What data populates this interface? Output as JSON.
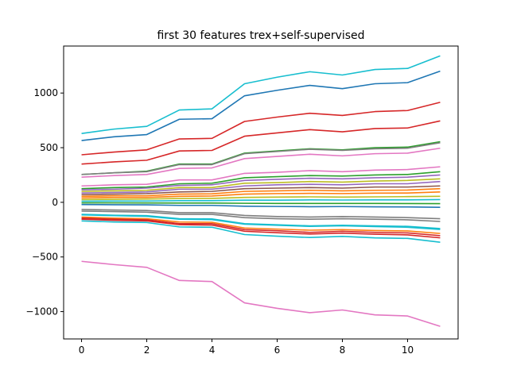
{
  "chart_data": {
    "type": "line",
    "title": "first 30 features trex+self-supervised",
    "xlabel": "",
    "ylabel": "",
    "xlim": [
      -0.55,
      11.55
    ],
    "ylim": [
      -1250,
      1430
    ],
    "xticks": [
      0,
      2,
      4,
      6,
      8,
      10
    ],
    "xtick_labels": [
      "0",
      "2",
      "4",
      "6",
      "8",
      "10"
    ],
    "yticks": [
      -1000,
      -500,
      0,
      500,
      1000
    ],
    "ytick_labels": [
      "−1000",
      "−500",
      "0",
      "500",
      "1000"
    ],
    "grid": false,
    "legend": "none",
    "x": [
      0,
      1,
      2,
      3,
      4,
      5,
      6,
      7,
      8,
      9,
      10,
      11
    ],
    "series": [
      {
        "color": "#17becf",
        "values": [
          630,
          670,
          695,
          845,
          855,
          1085,
          1145,
          1195,
          1165,
          1215,
          1225,
          1340
        ]
      },
      {
        "color": "#1f77b4",
        "values": [
          565,
          600,
          620,
          760,
          765,
          975,
          1025,
          1070,
          1040,
          1085,
          1095,
          1200
        ]
      },
      {
        "color": "#d62728",
        "values": [
          435,
          460,
          480,
          580,
          585,
          740,
          780,
          815,
          795,
          830,
          840,
          915
        ]
      },
      {
        "color": "#d62728",
        "values": [
          350,
          370,
          385,
          470,
          475,
          605,
          635,
          665,
          645,
          675,
          680,
          745
        ]
      },
      {
        "color": "#2ca02c",
        "values": [
          255,
          270,
          285,
          350,
          350,
          450,
          470,
          490,
          480,
          500,
          505,
          555
        ]
      },
      {
        "color": "#7f7f7f",
        "values": [
          255,
          270,
          280,
          345,
          345,
          445,
          465,
          485,
          475,
          490,
          495,
          545
        ]
      },
      {
        "color": "#e377c2",
        "values": [
          230,
          245,
          255,
          310,
          315,
          400,
          420,
          440,
          425,
          445,
          450,
          495
        ]
      },
      {
        "color": "#e377c2",
        "values": [
          150,
          160,
          165,
          205,
          205,
          265,
          275,
          290,
          280,
          295,
          300,
          325
        ]
      },
      {
        "color": "#2ca02c",
        "values": [
          125,
          135,
          140,
          170,
          175,
          225,
          235,
          245,
          240,
          250,
          255,
          280
        ]
      },
      {
        "color": "#9467bd",
        "values": [
          115,
          120,
          130,
          155,
          160,
          200,
          210,
          220,
          215,
          225,
          230,
          250
        ]
      },
      {
        "color": "#bcbd22",
        "values": [
          100,
          105,
          110,
          135,
          135,
          175,
          180,
          190,
          185,
          195,
          200,
          215
        ]
      },
      {
        "color": "#9467bd",
        "values": [
          85,
          90,
          95,
          120,
          120,
          150,
          160,
          165,
          160,
          170,
          170,
          190
        ]
      },
      {
        "color": "#8c564b",
        "values": [
          70,
          75,
          80,
          95,
          100,
          125,
          130,
          135,
          130,
          140,
          140,
          150
        ]
      },
      {
        "color": "#ff7f0e",
        "values": [
          55,
          60,
          60,
          75,
          78,
          100,
          105,
          110,
          105,
          110,
          112,
          125
        ]
      },
      {
        "color": "#ff7f0e",
        "values": [
          40,
          45,
          45,
          55,
          58,
          75,
          80,
          82,
          80,
          84,
          85,
          95
        ]
      },
      {
        "color": "#bcbd22",
        "values": [
          25,
          28,
          30,
          35,
          36,
          45,
          48,
          50,
          48,
          50,
          52,
          55
        ]
      },
      {
        "color": "#17becf",
        "values": [
          10,
          12,
          12,
          15,
          15,
          20,
          20,
          22,
          21,
          22,
          22,
          25
        ]
      },
      {
        "color": "#2ca02c",
        "values": [
          -5,
          -5,
          -6,
          -7,
          -7,
          -9,
          -10,
          -10,
          -10,
          -10,
          -11,
          -12
        ]
      },
      {
        "color": "#1f77b4",
        "values": [
          -20,
          -22,
          -23,
          -28,
          -28,
          -36,
          -38,
          -40,
          -39,
          -41,
          -42,
          -46
        ]
      },
      {
        "color": "#7f7f7f",
        "values": [
          -65,
          -70,
          -75,
          -95,
          -95,
          -120,
          -130,
          -135,
          -130,
          -135,
          -140,
          -150
        ]
      },
      {
        "color": "#7f7f7f",
        "values": [
          -80,
          -85,
          -90,
          -110,
          -110,
          -140,
          -150,
          -155,
          -150,
          -155,
          -160,
          -175
        ]
      },
      {
        "color": "#17becf",
        "values": [
          -110,
          -118,
          -122,
          -150,
          -152,
          -195,
          -205,
          -215,
          -210,
          -215,
          -220,
          -240
        ]
      },
      {
        "color": "#17becf",
        "values": [
          -115,
          -122,
          -128,
          -155,
          -158,
          -200,
          -210,
          -220,
          -215,
          -222,
          -228,
          -248
        ]
      },
      {
        "color": "#ff7f0e",
        "values": [
          -135,
          -145,
          -150,
          -180,
          -183,
          -235,
          -245,
          -255,
          -250,
          -258,
          -262,
          -285
        ]
      },
      {
        "color": "#d62728",
        "values": [
          -145,
          -155,
          -160,
          -195,
          -195,
          -250,
          -260,
          -275,
          -265,
          -275,
          -280,
          -305
        ]
      },
      {
        "color": "#d62728",
        "values": [
          -155,
          -165,
          -170,
          -205,
          -208,
          -265,
          -278,
          -290,
          -282,
          -292,
          -298,
          -325
        ]
      },
      {
        "color": "#17becf",
        "values": [
          -170,
          -180,
          -185,
          -225,
          -228,
          -295,
          -310,
          -322,
          -312,
          -325,
          -330,
          -365
        ]
      },
      {
        "color": "#e377c2",
        "values": [
          -540,
          -570,
          -595,
          -715,
          -725,
          -920,
          -970,
          -1010,
          -985,
          -1030,
          -1040,
          -1135
        ]
      }
    ]
  }
}
